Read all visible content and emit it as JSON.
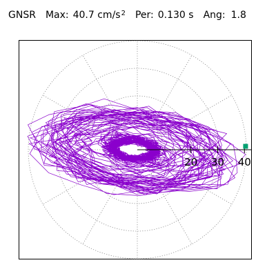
{
  "header": {
    "station": "GNSR",
    "max_label": "Max:",
    "max_value": "40.7 cm/s",
    "max_exp": "2",
    "per_label": "Per:",
    "per_value": "0.130 s",
    "ang_label": "Ang:",
    "ang_value": "1.8"
  },
  "colors": {
    "trace": "#8a00cc",
    "grid": "#888888",
    "marker": "#00a070",
    "axis": "#000000"
  },
  "chart_data": {
    "type": "scatter",
    "title": "",
    "xlabel": "",
    "ylabel": "",
    "radial_ticks": [
      "20",
      "30",
      "40"
    ],
    "radial_tick_values": [
      20,
      30,
      40
    ],
    "r_max": 40.7,
    "max_direction_deg": 1.8,
    "grid": true
  }
}
